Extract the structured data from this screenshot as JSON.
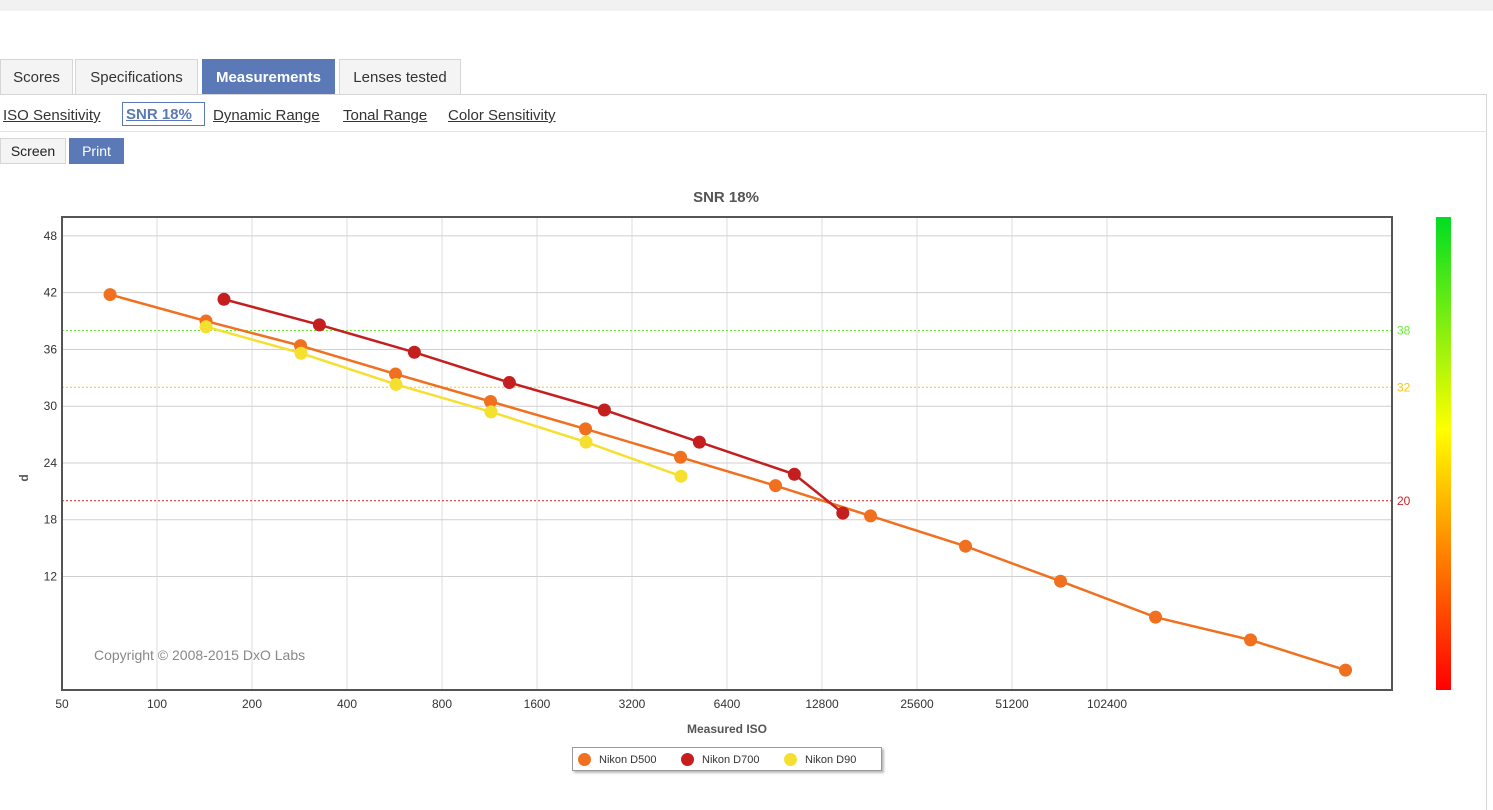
{
  "tabs": [
    {
      "label": "Scores",
      "active": false
    },
    {
      "label": "Specifications",
      "active": false
    },
    {
      "label": "Measurements",
      "active": true
    },
    {
      "label": "Lenses tested",
      "active": false
    }
  ],
  "subtabs": [
    {
      "label": "ISO Sensitivity",
      "active": false
    },
    {
      "label": "SNR 18%",
      "active": true
    },
    {
      "label": "Dynamic Range",
      "active": false
    },
    {
      "label": "Tonal Range",
      "active": false
    },
    {
      "label": "Color Sensitivity",
      "active": false
    }
  ],
  "mode": {
    "screen_label": "Screen",
    "print_label": "Print",
    "selected": "Print"
  },
  "chart_data": {
    "type": "line",
    "title": "SNR 18%",
    "xlabel": "Measured ISO",
    "ylabel": "d",
    "x_scale": "log2",
    "xlim": [
      50,
      819200
    ],
    "x_ticks": [
      "50",
      "100",
      "200",
      "400",
      "800",
      "1600",
      "3200",
      "6400",
      "12800",
      "25600",
      "51200",
      "102400"
    ],
    "ylim": [
      0,
      50
    ],
    "y_ticks": [
      12,
      18,
      24,
      30,
      36,
      42,
      48
    ],
    "grid": true,
    "legend_position": "bottom-center",
    "copyright": "Copyright © 2008-2015 DxO Labs",
    "thresholds": [
      {
        "value": 38,
        "label": "38",
        "color": "#66ee33"
      },
      {
        "value": 32,
        "label": "32",
        "color": "#f5c518"
      },
      {
        "value": 20,
        "label": "20",
        "color": "#cc2222"
      }
    ],
    "color_scale": [
      "#00dd22",
      "#ffff00",
      "#ff8800",
      "#ff0000"
    ],
    "series": [
      {
        "name": "Nikon D500",
        "color": "#f07020",
        "points": [
          [
            71,
            41.8
          ],
          [
            143,
            39.0
          ],
          [
            285,
            36.4
          ],
          [
            570,
            33.4
          ],
          [
            1140,
            30.5
          ],
          [
            2280,
            27.6
          ],
          [
            4560,
            24.6
          ],
          [
            9120,
            21.6
          ],
          [
            18240,
            18.4
          ],
          [
            36480,
            15.2
          ],
          [
            72960,
            11.5
          ],
          [
            145920,
            7.7
          ],
          [
            291840,
            5.3
          ],
          [
            583680,
            2.1
          ]
        ]
      },
      {
        "name": "Nikon D700",
        "color": "#c41e1e",
        "points": [
          [
            163,
            41.3
          ],
          [
            327,
            38.6
          ],
          [
            654,
            35.7
          ],
          [
            1308,
            32.5
          ],
          [
            2616,
            29.6
          ],
          [
            5232,
            26.2
          ],
          [
            10464,
            22.8
          ],
          [
            14900,
            18.7
          ]
        ]
      },
      {
        "name": "Nikon D90",
        "color": "#f5e030",
        "points": [
          [
            143,
            38.4
          ],
          [
            286,
            35.6
          ],
          [
            572,
            32.3
          ],
          [
            1144,
            29.4
          ],
          [
            2288,
            26.2
          ],
          [
            4576,
            22.6
          ]
        ]
      }
    ]
  }
}
